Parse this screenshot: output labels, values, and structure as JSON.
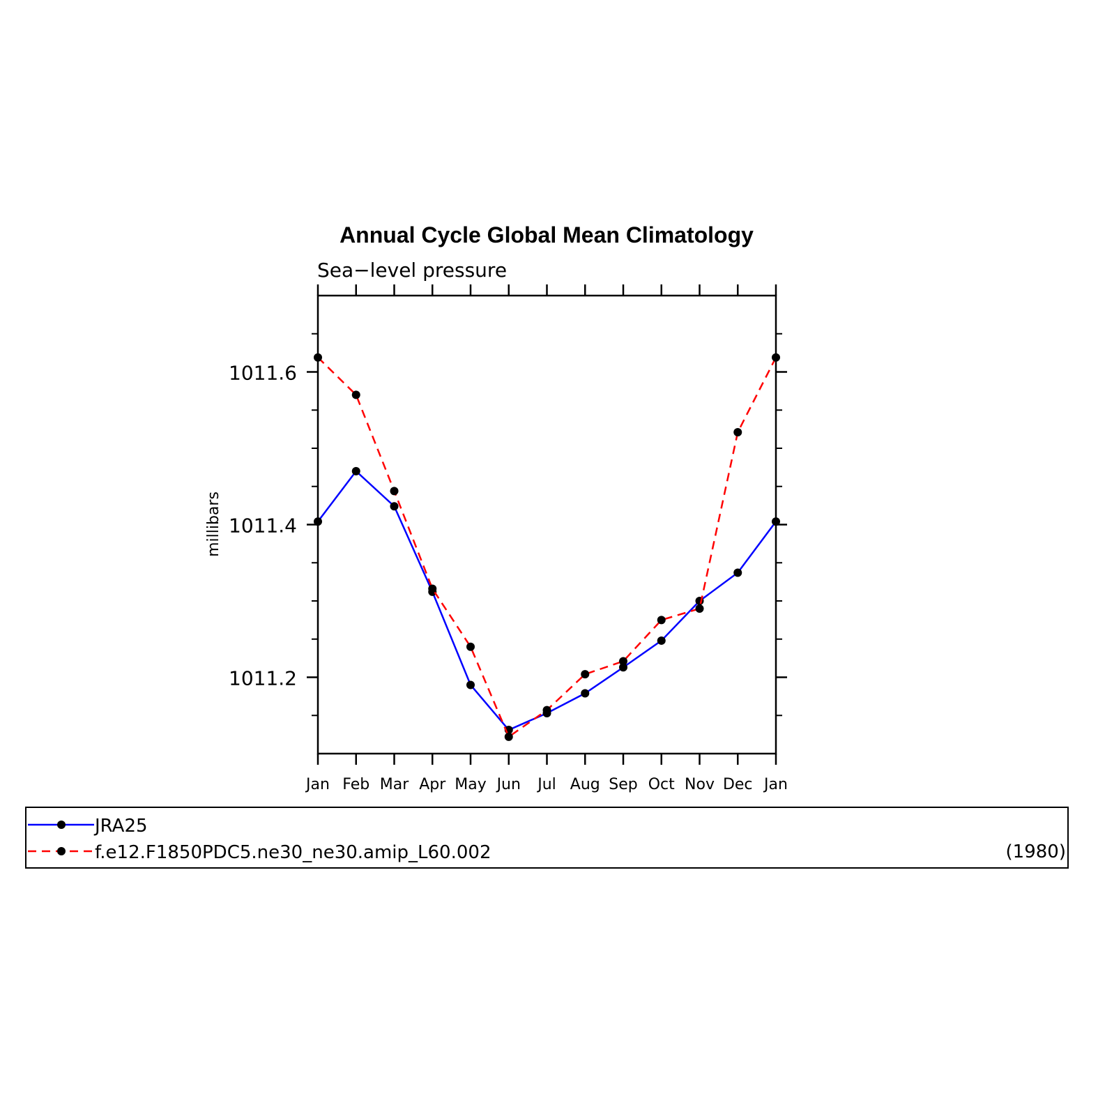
{
  "chart_data": {
    "type": "line",
    "title": "Annual Cycle Global Mean Climatology",
    "subtitle": "Sea−level pressure",
    "ylabel": "millibars",
    "xlabel": "",
    "categories": [
      "Jan",
      "Feb",
      "Mar",
      "Apr",
      "May",
      "Jun",
      "Jul",
      "Aug",
      "Sep",
      "Oct",
      "Nov",
      "Dec",
      "Jan"
    ],
    "ylim": [
      1011.1,
      1011.7
    ],
    "yticks": [
      1011.2,
      1011.4,
      1011.6
    ],
    "ytick_labels": [
      "1011.2",
      "1011.4",
      "1011.6"
    ],
    "series": [
      {
        "name": "JRA25",
        "color": "#0000ff",
        "dash": "solid",
        "values": [
          1011.404,
          1011.47,
          1011.424,
          1011.312,
          1011.19,
          1011.131,
          1011.153,
          1011.179,
          1011.213,
          1011.248,
          1011.3,
          1011.337,
          1011.404
        ]
      },
      {
        "name": "f.e12.F1850PDC5.ne30_ne30.amip_L60.002",
        "color": "#ff0000",
        "dash": "dashed",
        "values": [
          1011.619,
          1011.57,
          1011.444,
          1011.316,
          1011.24,
          1011.122,
          1011.157,
          1011.204,
          1011.221,
          1011.275,
          1011.29,
          1011.521,
          1011.619
        ]
      }
    ],
    "legend": {
      "placement": "bottom",
      "entries": [
        "JRA25",
        "f.e12.F1850PDC5.ne30_ne30.amip_L60.002"
      ],
      "note": "(1980)"
    },
    "grid": false
  }
}
